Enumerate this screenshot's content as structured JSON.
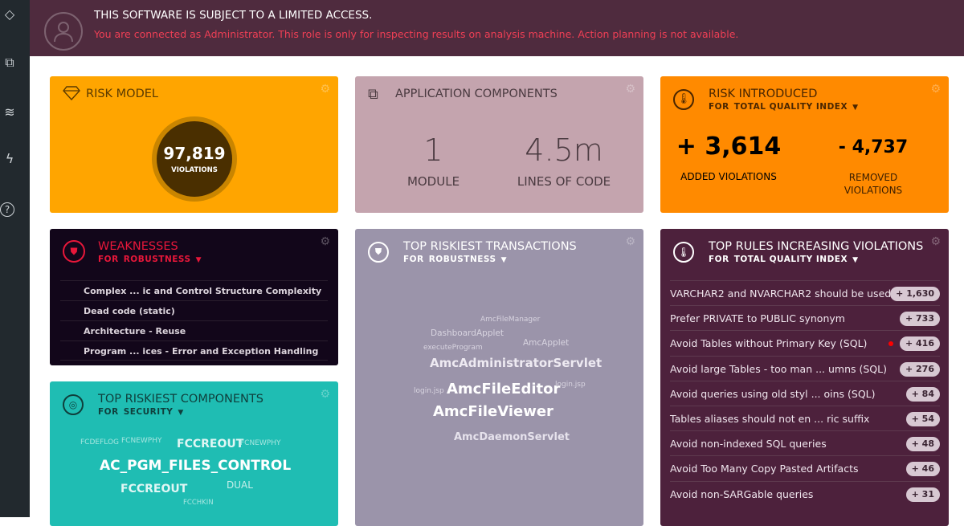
{
  "sidebar": {
    "items": [
      {
        "icon": "diamond-icon"
      },
      {
        "icon": "layers-icon"
      },
      {
        "icon": "layers-down-icon"
      },
      {
        "icon": "cart-bolt-icon"
      },
      {
        "icon": "help-icon"
      }
    ]
  },
  "banner": {
    "title": "THIS SOFTWARE IS SUBJECT TO A LIMITED ACCESS.",
    "message": "You are connected as Administrator. This role is only for inspecting results on analysis machine. Action planning is not available."
  },
  "risk_model": {
    "title": "RISK MODEL",
    "value": "97,819",
    "label": "VIOLATIONS",
    "color": "#ffa500"
  },
  "app_components": {
    "title": "APPLICATION COMPONENTS",
    "modules": "1",
    "modules_label": "MODULE",
    "loc": "4.5m",
    "loc_label": "LINES OF CODE",
    "color": "#c4a4ae"
  },
  "risk_introduced": {
    "title": "RISK INTRODUCED",
    "for": "FOR",
    "selector": "TOTAL QUALITY INDEX",
    "added": "+ 3,614",
    "added_label": "ADDED VIOLATIONS",
    "removed": "- 4,737",
    "removed_label": "REMOVED VIOLATIONS",
    "color": "#ff8a00"
  },
  "weaknesses": {
    "title": "WEAKNESSES",
    "for": "FOR",
    "selector": "ROBUSTNESS",
    "items": [
      "Complex ... ic and Control Structure Complexity",
      "Dead code (static)",
      "Architecture - Reuse",
      "Program ... ices - Error and Exception Handling"
    ],
    "color": "#12061a",
    "accent": "#e8173a"
  },
  "transactions": {
    "title": "TOP RISKIEST TRANSACTIONS",
    "for": "FOR",
    "selector": "ROBUSTNESS",
    "words": [
      "AmcFileManager",
      "DashboardApplet",
      "AmcApplet",
      "executeProgram",
      "AmcAdministratorServlet",
      "login.jsp",
      "AmcFileEditor",
      "login.jsp",
      "AmcFileViewer",
      "AmcDaemonServlet"
    ],
    "color": "#9b94aa"
  },
  "components": {
    "title": "TOP RISKIEST COMPONENTS",
    "for": "FOR",
    "selector": "SECURITY",
    "words": [
      "FCDEFLOG",
      "FCNEWPHY",
      "FCCREOUT",
      "FCNEWPHY",
      "AC_PGM_FILES_CONTROL",
      "FCCREOUT",
      "DUAL",
      "FCCHKIN"
    ],
    "color": "#1fbdb3"
  },
  "rules": {
    "title": "TOP RULES INCREASING VIOLATIONS",
    "for": "FOR",
    "selector": "TOTAL QUALITY INDEX",
    "color": "#4d213c",
    "items": [
      {
        "name": "VARCHAR2 and NVARCHAR2 should be used",
        "value": "+ 1,630"
      },
      {
        "name": "Prefer PRIVATE to PUBLIC synonym",
        "value": "+ 733"
      },
      {
        "name": "Avoid Tables without Primary Key (SQL)",
        "value": "+ 416",
        "flag": true
      },
      {
        "name": "Avoid large Tables - too man ... umns (SQL)",
        "value": "+ 276"
      },
      {
        "name": "Avoid queries using old styl ... oins (SQL)",
        "value": "+ 84"
      },
      {
        "name": "Tables aliases should not en ... ric suffix",
        "value": "+ 54"
      },
      {
        "name": "Avoid non-indexed SQL queries",
        "value": "+ 48"
      },
      {
        "name": "Avoid Too Many Copy Pasted Artifacts",
        "value": "+ 46"
      },
      {
        "name": "Avoid non-SARGable queries",
        "value": "+ 31"
      }
    ]
  }
}
